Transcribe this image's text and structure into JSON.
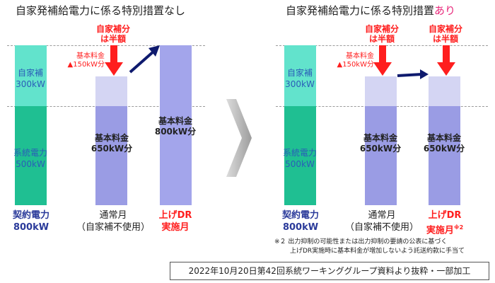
{
  "left": {
    "title": "自家発補給電力に係る特別措置なし",
    "half_label": "自家補分\nは半額",
    "basic_fee_reduction": "基本料金\n▲150kW分",
    "contract_jikaho": "自家補\n300kW",
    "contract_keitou": "系統電力\n500kW",
    "normal_bar_label": "基本料金\n650kW分",
    "dr_bar_label": "基本料金\n800kW分",
    "contract_label": "契約電力\n800kW",
    "normal_month_label": "通常月\n（自家補不使用）",
    "dr_month_label": "上げDR\n実施月"
  },
  "right": {
    "title_main": "自家発補給電力に係る特別措置",
    "title_accent": "あり",
    "half_label_1": "自家補分\nは半額",
    "half_label_2": "自家補分\nは半額",
    "basic_fee_reduction": "基本料金\n▲150kW分",
    "contract_jikaho": "自家補\n300kW",
    "contract_keitou": "系統電力\n500kW",
    "normal_bar_label": "基本料金\n650kW分",
    "dr_bar_label": "基本料金\n650kW分",
    "contract_label": "契約電力\n800kW",
    "normal_month_label": "通常月\n（自家補不使用）",
    "dr_month_label": "上げDR\n実施月",
    "dr_month_superscript": "※2",
    "note_line1": "※２ 出力抑制の可能性または出力抑制の要請の公表に基づく",
    "note_line2": "上げDR実施時に基本料金が増加しないよう託送約款に手当て"
  },
  "source": "2022年10月20日第42回系統ワーキンググループ資料より抜粋・一部加工",
  "colors": {
    "teal_light": "#62e3cc",
    "teal_dark": "#1fbf92",
    "bar_pale": "#d4d5f3",
    "bar_blue": "#9a9ce4",
    "red": "#ff1e1e",
    "navy_arrow": "#0e1a6e",
    "accent_pink": "#e8287a",
    "label_blue": "#2a5db8"
  },
  "icons": [
    "red-down-arrow-icon",
    "navy-arrow-icon",
    "gray-chevron-right-icon"
  ]
}
